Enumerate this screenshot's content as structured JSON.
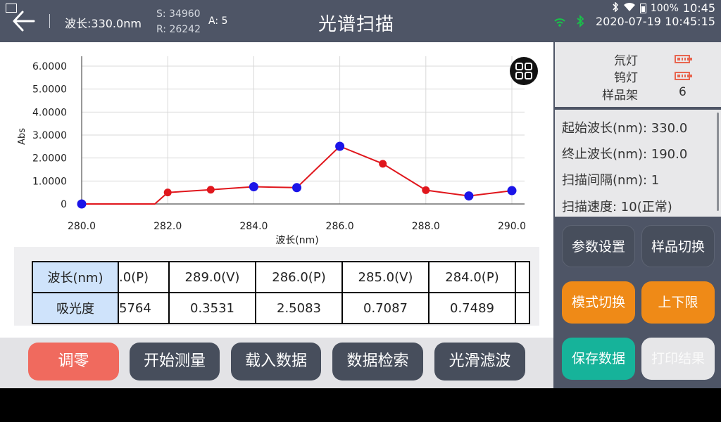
{
  "status_bar": {
    "battery": "100%",
    "time": "10:45"
  },
  "header": {
    "wavelength": "波长:330.0nm",
    "s_value": "S: 34960",
    "r_value": "R: 26242",
    "a_value": "A: 5",
    "title": "光谱扫描",
    "datetime": "2020-07-19 10:45:15"
  },
  "chart_data": {
    "type": "line",
    "ylabel": "Abs",
    "xlabel": "波长(nm)",
    "xlim": [
      280,
      290
    ],
    "ylim": [
      0,
      6
    ],
    "x_ticks": [
      "280.0",
      "282.0",
      "284.0",
      "286.0",
      "288.0",
      "290.0"
    ],
    "y_ticks": [
      "0",
      "1.0000",
      "2.0000",
      "3.0000",
      "4.0000",
      "5.0000",
      "6.0000"
    ],
    "grid": true,
    "series": [
      {
        "color": "#e0161c",
        "points": [
          {
            "x": 280.0,
            "y": 0.0,
            "marker": "blue"
          },
          {
            "x": 281.7,
            "y": 0.0,
            "marker": "none"
          },
          {
            "x": 282.0,
            "y": 0.5,
            "marker": "red"
          },
          {
            "x": 283.0,
            "y": 0.62,
            "marker": "red"
          },
          {
            "x": 284.0,
            "y": 0.75,
            "marker": "blue"
          },
          {
            "x": 285.0,
            "y": 0.71,
            "marker": "blue"
          },
          {
            "x": 286.0,
            "y": 2.51,
            "marker": "blue"
          },
          {
            "x": 287.0,
            "y": 1.75,
            "marker": "red"
          },
          {
            "x": 288.0,
            "y": 0.6,
            "marker": "red"
          },
          {
            "x": 289.0,
            "y": 0.35,
            "marker": "blue"
          },
          {
            "x": 290.0,
            "y": 0.58,
            "marker": "blue"
          }
        ]
      }
    ],
    "marker_colors": {
      "blue": "#1b14e8",
      "red": "#e0161c"
    }
  },
  "table": {
    "row1_header": "波长(nm)",
    "row2_header": "吸光度",
    "row1": [
      ".0(P)",
      "289.0(V)",
      "286.0(P)",
      "285.0(V)",
      "284.0(P)"
    ],
    "row2": [
      "5764",
      "0.3531",
      "2.5083",
      "0.7087",
      "0.7489"
    ]
  },
  "bottom_buttons": {
    "zero": "调零",
    "start": "开始测量",
    "load": "载入数据",
    "search": "数据检索",
    "smooth": "光滑滤波"
  },
  "right_panel": {
    "deuterium_label": "氘灯",
    "tungsten_label": "钨灯",
    "holder_label": "样品架",
    "holder_value": "6",
    "start_wl": "起始波长(nm): 330.0",
    "end_wl": "终止波长(nm): 190.0",
    "interval": "扫描间隔(nm): 1",
    "speed": "扫描速度: 10(正常)",
    "btn_params": "参数设置",
    "btn_sample": "样品切换",
    "btn_mode": "模式切换",
    "btn_limits": "上下限",
    "btn_save": "保存数据",
    "btn_print": "打印结果"
  },
  "colors": {
    "header_bg": "#4e5566",
    "accent_orange": "#ef8a17",
    "accent_teal": "#16b39a",
    "accent_red": "#f06a5e"
  }
}
